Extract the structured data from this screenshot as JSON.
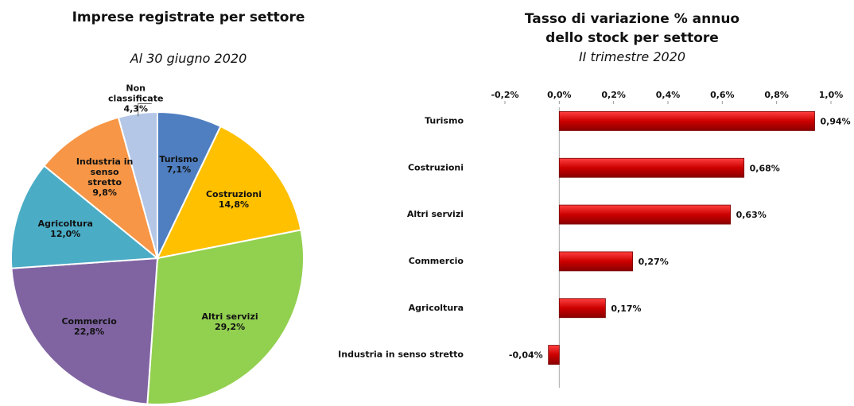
{
  "chart_data": [
    {
      "type": "pie",
      "title": "Imprese registrate per settore",
      "subtitle": "Al 30 giugno 2020",
      "categories": [
        "Turismo",
        "Costruzioni",
        "Altri servizi",
        "Commercio",
        "Agricoltura",
        "Industria in senso stretto",
        "Non classificate"
      ],
      "values": [
        7.1,
        14.8,
        29.2,
        22.8,
        12.0,
        9.8,
        4.3
      ],
      "value_labels": [
        "7,1%",
        "14,8%",
        "29,2%",
        "22,8%",
        "12,0%",
        "9,8%",
        "4,3%"
      ],
      "colors": [
        "#4f7fc0",
        "#ffc000",
        "#92d050",
        "#8064a2",
        "#4bacc6",
        "#f79646",
        "#b4c7e7"
      ]
    },
    {
      "type": "barh",
      "title": "Tasso di variazione % annuo dello stock per settore",
      "subtitle": "II trimestre 2020",
      "categories": [
        "Turismo",
        "Costruzioni",
        "Altri servizi",
        "Commercio",
        "Agricoltura",
        "Industria in senso stretto"
      ],
      "values": [
        0.94,
        0.68,
        0.63,
        0.27,
        0.17,
        -0.04
      ],
      "value_labels": [
        "0,94%",
        "0,68%",
        "0,63%",
        "0,27%",
        "0,17%",
        "-0,04%"
      ],
      "color": "#cc0000",
      "xlim": [
        -0.2,
        1.0
      ],
      "xticks": [
        {
          "value": -0.2,
          "label": "-0,2%"
        },
        {
          "value": 0,
          "label": "0,0%"
        },
        {
          "value": 0.2,
          "label": "0,2%"
        },
        {
          "value": 0.4,
          "label": "0,4%"
        },
        {
          "value": 0.6,
          "label": "0,6%"
        },
        {
          "value": 0.8,
          "label": "0,8%"
        },
        {
          "value": 1.0,
          "label": "1,0%"
        }
      ]
    }
  ]
}
